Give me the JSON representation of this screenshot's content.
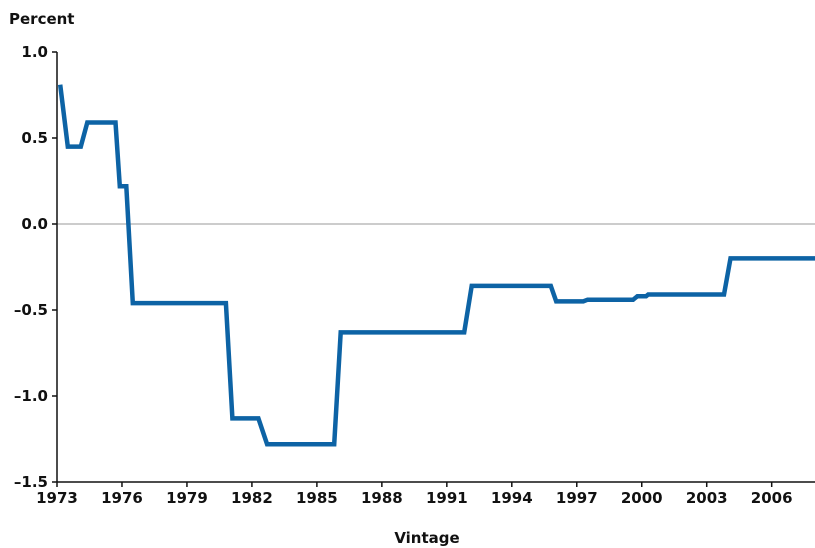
{
  "chart_data": {
    "type": "line",
    "title": "",
    "ylabel": "Percent",
    "xlabel": "Vintage",
    "xlim": [
      1973,
      2008
    ],
    "ylim": [
      -1.5,
      1.0
    ],
    "x_ticks": [
      1973,
      1976,
      1979,
      1982,
      1985,
      1988,
      1991,
      1994,
      1997,
      2000,
      2003,
      2006
    ],
    "x_tick_labels": [
      "1973",
      "1976",
      "1979",
      "1982",
      "1985",
      "1988",
      "1991",
      "1994",
      "1997",
      "2000",
      "2003",
      "2006"
    ],
    "y_ticks": [
      1.0,
      0.5,
      0.0,
      -0.5,
      -1.0,
      -1.5
    ],
    "y_tick_labels": [
      "1.0",
      "0.5",
      "0.0",
      "–0.5",
      "–1.0",
      "–1.5"
    ],
    "zero_line": true,
    "grid": false,
    "colors": {
      "series": "#0d63a5",
      "zero_line": "#9a9a9a",
      "axis": "#111111"
    },
    "series": [
      {
        "x": [
          1973.15,
          1973.5,
          1974.1,
          1974.4,
          1975.7,
          1975.9,
          1976.2,
          1976.5,
          1980.8,
          1981.1,
          1982.3,
          1982.7,
          1985.8,
          1986.1,
          1991.8,
          1992.15,
          1995.8,
          1996.05,
          1997.3,
          1997.5,
          1999.6,
          1999.8,
          2000.2,
          2000.3,
          2003.8,
          2004.1,
          2008.0
        ],
        "y": [
          0.81,
          0.45,
          0.45,
          0.59,
          0.59,
          0.22,
          0.22,
          -0.46,
          -0.46,
          -1.13,
          -1.13,
          -1.28,
          -1.28,
          -0.63,
          -0.63,
          -0.36,
          -0.36,
          -0.45,
          -0.45,
          -0.44,
          -0.44,
          -0.42,
          -0.42,
          -0.41,
          -0.41,
          -0.2,
          -0.2
        ]
      }
    ]
  }
}
